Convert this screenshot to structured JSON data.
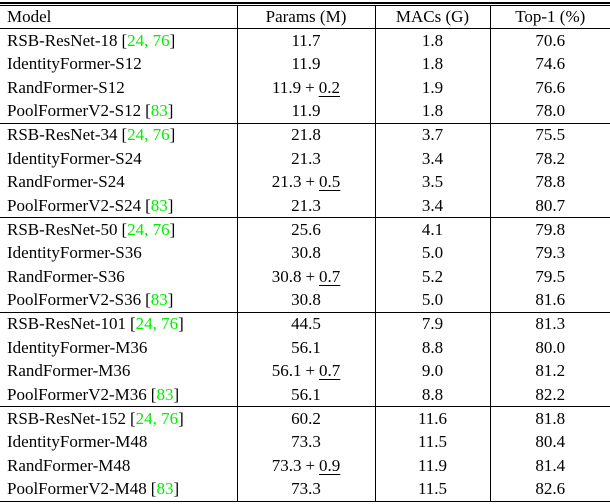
{
  "colors": {
    "citation_green": "#00ee00",
    "text": "#000000",
    "rule": "#000000"
  },
  "table": {
    "columns": [
      "Model",
      "Params (M)",
      "MACs (G)",
      "Top-1 (%)"
    ],
    "citation_format": {
      "open": "[",
      "close": "]"
    },
    "plus_separator": "+",
    "groups": [
      {
        "rows": [
          {
            "model": "RSB-ResNet-18",
            "cite": "24, 76",
            "params_base": "11.7",
            "params_plus": null,
            "macs": "1.8",
            "top1": "70.6"
          },
          {
            "model": "IdentityFormer-S12",
            "cite": null,
            "params_base": "11.9",
            "params_plus": null,
            "macs": "1.8",
            "top1": "74.6"
          },
          {
            "model": "RandFormer-S12",
            "cite": null,
            "params_base": "11.9",
            "params_plus": "0.2",
            "macs": "1.9",
            "top1": "76.6"
          },
          {
            "model": "PoolFormerV2-S12",
            "cite": "83",
            "params_base": "11.9",
            "params_plus": null,
            "macs": "1.8",
            "top1": "78.0"
          }
        ]
      },
      {
        "rows": [
          {
            "model": "RSB-ResNet-34",
            "cite": "24, 76",
            "params_base": "21.8",
            "params_plus": null,
            "macs": "3.7",
            "top1": "75.5"
          },
          {
            "model": "IdentityFormer-S24",
            "cite": null,
            "params_base": "21.3",
            "params_plus": null,
            "macs": "3.4",
            "top1": "78.2"
          },
          {
            "model": "RandFormer-S24",
            "cite": null,
            "params_base": "21.3",
            "params_plus": "0.5",
            "macs": "3.5",
            "top1": "78.8"
          },
          {
            "model": "PoolFormerV2-S24",
            "cite": "83",
            "params_base": "21.3",
            "params_plus": null,
            "macs": "3.4",
            "top1": "80.7"
          }
        ]
      },
      {
        "rows": [
          {
            "model": "RSB-ResNet-50",
            "cite": "24, 76",
            "params_base": "25.6",
            "params_plus": null,
            "macs": "4.1",
            "top1": "79.8"
          },
          {
            "model": "IdentityFormer-S36",
            "cite": null,
            "params_base": "30.8",
            "params_plus": null,
            "macs": "5.0",
            "top1": "79.3"
          },
          {
            "model": "RandFormer-S36",
            "cite": null,
            "params_base": "30.8",
            "params_plus": "0.7",
            "macs": "5.2",
            "top1": "79.5"
          },
          {
            "model": "PoolFormerV2-S36",
            "cite": "83",
            "params_base": "30.8",
            "params_plus": null,
            "macs": "5.0",
            "top1": "81.6"
          }
        ]
      },
      {
        "rows": [
          {
            "model": "RSB-ResNet-101",
            "cite": "24, 76",
            "params_base": "44.5",
            "params_plus": null,
            "macs": "7.9",
            "top1": "81.3"
          },
          {
            "model": "IdentityFormer-M36",
            "cite": null,
            "params_base": "56.1",
            "params_plus": null,
            "macs": "8.8",
            "top1": "80.0"
          },
          {
            "model": "RandFormer-M36",
            "cite": null,
            "params_base": "56.1",
            "params_plus": "0.7",
            "macs": "9.0",
            "top1": "81.2"
          },
          {
            "model": "PoolFormerV2-M36",
            "cite": "83",
            "params_base": "56.1",
            "params_plus": null,
            "macs": "8.8",
            "top1": "82.2"
          }
        ]
      },
      {
        "rows": [
          {
            "model": "RSB-ResNet-152",
            "cite": "24, 76",
            "params_base": "60.2",
            "params_plus": null,
            "macs": "11.6",
            "top1": "81.8"
          },
          {
            "model": "IdentityFormer-M48",
            "cite": null,
            "params_base": "73.3",
            "params_plus": null,
            "macs": "11.5",
            "top1": "80.4"
          },
          {
            "model": "RandFormer-M48",
            "cite": null,
            "params_base": "73.3",
            "params_plus": "0.9",
            "macs": "11.9",
            "top1": "81.4"
          },
          {
            "model": "PoolFormerV2-M48",
            "cite": "83",
            "params_base": "73.3",
            "params_plus": null,
            "macs": "11.5",
            "top1": "82.6"
          }
        ]
      }
    ]
  }
}
